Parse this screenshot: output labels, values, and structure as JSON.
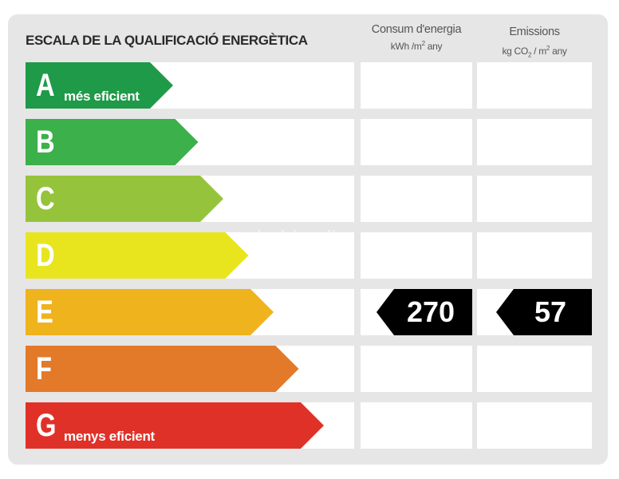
{
  "title": "ESCALA DE LA QUALIFICACIÓ ENERGÈTICA",
  "columns": {
    "energy": {
      "label": "Consum d'energia",
      "unit_prefix": "kWh /m",
      "unit_sup": "2",
      "unit_suffix": " any"
    },
    "emissions": {
      "label": "Emissions",
      "unit_prefix": "kg CO",
      "unit_sub": "2",
      "unit_mid": " / m",
      "unit_sup": "2",
      "unit_suffix": " any"
    }
  },
  "ratings": [
    {
      "letter": "A",
      "desc": "més eficient",
      "color": "#1f9a48"
    },
    {
      "letter": "B",
      "desc": "",
      "color": "#3cb04a"
    },
    {
      "letter": "C",
      "desc": "",
      "color": "#95c43c"
    },
    {
      "letter": "D",
      "desc": "",
      "color": "#e8e51f"
    },
    {
      "letter": "E",
      "desc": "",
      "color": "#efb31e"
    },
    {
      "letter": "F",
      "desc": "",
      "color": "#e27a2a"
    },
    {
      "letter": "G",
      "desc": "menys eficient",
      "color": "#e03128"
    }
  ],
  "current": {
    "rating": "E",
    "energy_value": "270",
    "emissions_value": "57"
  },
  "watermark": "habitaclia"
}
